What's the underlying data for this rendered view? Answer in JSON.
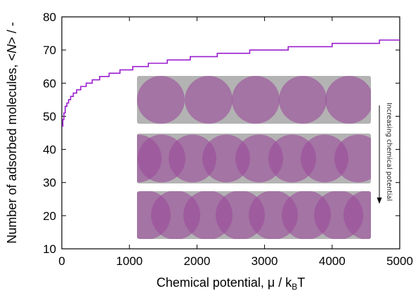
{
  "chart_data": {
    "type": "line",
    "xlabel_main": "Chemical potential, μ / k",
    "xlabel_sub": "B",
    "xlabel_tail": "T",
    "ylabel_prefix": "Number of adsorbed molecules, <",
    "ylabel_var": "N",
    "ylabel_suffix": "> / -",
    "xlim": [
      0,
      5000
    ],
    "ylim": [
      10,
      80
    ],
    "xticks": [
      0,
      1000,
      2000,
      3000,
      4000,
      5000
    ],
    "yticks": [
      10,
      20,
      30,
      40,
      50,
      60,
      70,
      80
    ],
    "grid": false,
    "series": [
      {
        "color": "#9b1fcf",
        "x": [
          0,
          15,
          30,
          50,
          75,
          100,
          130,
          170,
          220,
          280,
          360,
          450,
          560,
          700,
          860,
          1050,
          1280,
          1560,
          1900,
          2300,
          2780,
          3350,
          4000,
          4700,
          5000
        ],
        "y": [
          47,
          49,
          51,
          53,
          54,
          55,
          56,
          57,
          58,
          59,
          60,
          61,
          62,
          63,
          64,
          65,
          66,
          67,
          68,
          69,
          70,
          71,
          72,
          73,
          73
        ]
      }
    ],
    "annotation": "Increasing chemical potential"
  },
  "colors": {
    "line": "#9b1fcf",
    "inset_bg": "#b3b3b3",
    "molecule": "#9b4d9b"
  }
}
